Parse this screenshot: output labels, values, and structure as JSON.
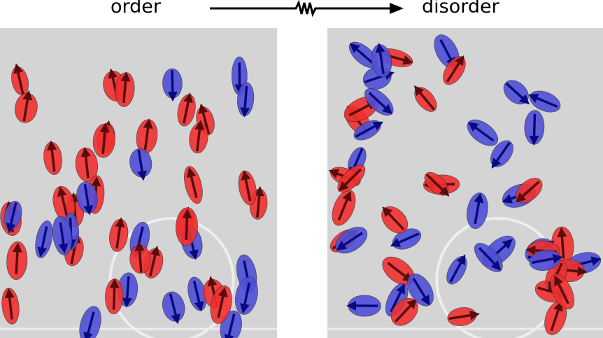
{
  "header": {
    "left_label": "order",
    "right_label": "disorder",
    "arrow_icon": "arrow-with-zigzag"
  },
  "colors": {
    "red_group": "#f03030",
    "blue_group": "#5050d8",
    "red_arrow": "#5a0c0c",
    "blue_arrow": "#0a0a80",
    "floor": "#d4d4d4"
  },
  "panels": [
    {
      "name": "order",
      "state": "aligned: red heading up, blue heading down"
    },
    {
      "name": "disorder",
      "state": "mixed headings"
    }
  ]
}
